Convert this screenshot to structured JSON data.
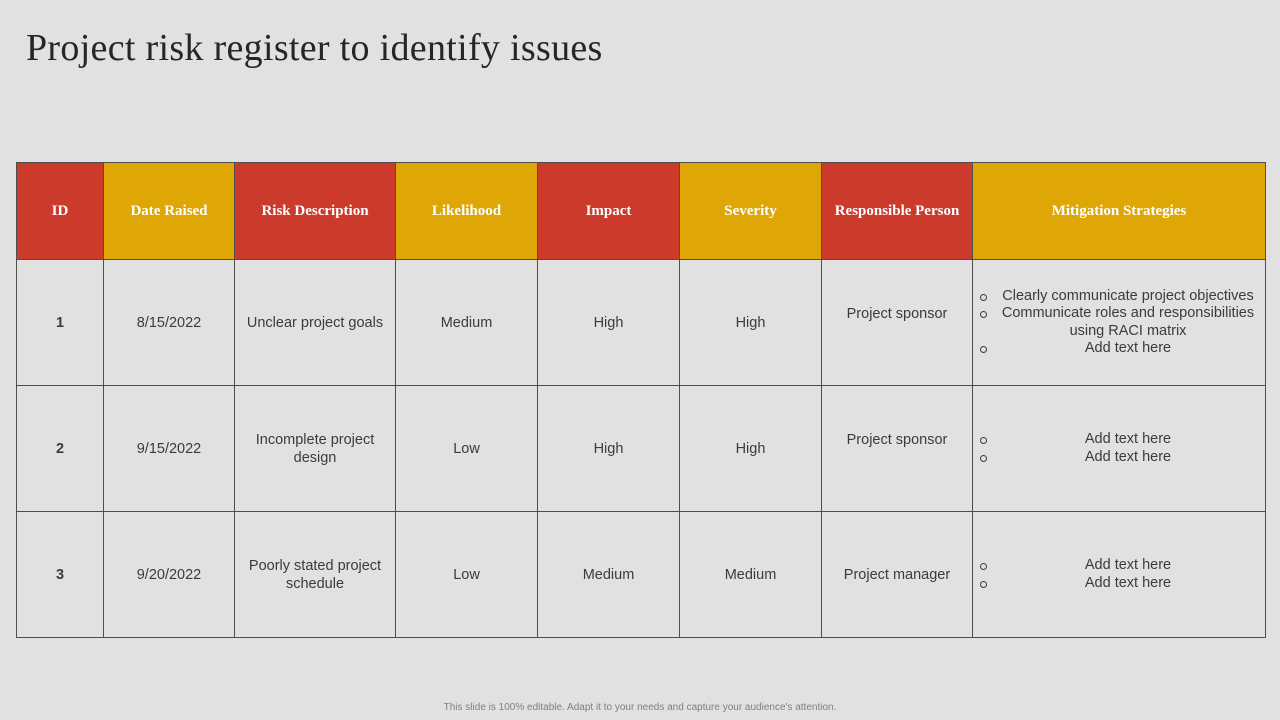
{
  "title": "Project risk register to identify issues",
  "table": {
    "headers": [
      {
        "label": "ID",
        "color": "#cc3a2c"
      },
      {
        "label": "Date Raised",
        "color": "#dea705"
      },
      {
        "label": "Risk Description",
        "color": "#cc3a2c"
      },
      {
        "label": "Likelihood",
        "color": "#dea705"
      },
      {
        "label": "Impact",
        "color": "#cc3a2c"
      },
      {
        "label": "Severity",
        "color": "#dea705"
      },
      {
        "label": "Responsible Person",
        "color": "#cc3a2c"
      },
      {
        "label": "Mitigation Strategies",
        "color": "#dea705"
      }
    ],
    "rows": [
      {
        "id": "1",
        "date": "8/15/2022",
        "description": "Unclear project goals",
        "likelihood": "Medium",
        "impact": "High",
        "severity": "High",
        "person": "Project sponsor",
        "mitigation": [
          "Clearly communicate project objectives",
          "Communicate roles and responsibilities using RACI matrix",
          "Add text here"
        ]
      },
      {
        "id": "2",
        "date": "9/15/2022",
        "description": "Incomplete project design",
        "likelihood": "Low",
        "impact": "High",
        "severity": "High",
        "person": "Project sponsor",
        "mitigation": [
          "Add text here",
          "Add text here"
        ]
      },
      {
        "id": "3",
        "date": "9/20/2022",
        "description": "Poorly stated project schedule",
        "likelihood": "Low",
        "impact": "Medium",
        "severity": "Medium",
        "person": "Project manager",
        "mitigation": [
          "Add text here",
          "Add text here"
        ]
      }
    ]
  },
  "level_colors": {
    "Low": "#92d050",
    "Medium": "#ffc000",
    "High": "#ff0000"
  },
  "footer": "This slide is 100% editable. Adapt it to your needs and capture your audience's attention."
}
